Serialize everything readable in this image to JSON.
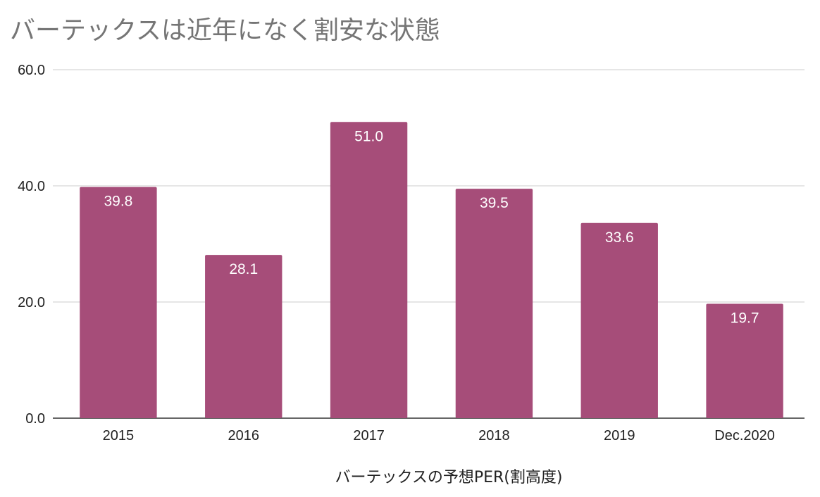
{
  "chart_data": {
    "type": "bar",
    "title": "バーテックスは近年になく割安な状態",
    "xlabel": "バーテックスの予想PER(割高度)",
    "ylabel": "",
    "categories": [
      "2015",
      "2016",
      "2017",
      "2018",
      "2019",
      "Dec.2020"
    ],
    "values": [
      39.8,
      28.1,
      51.0,
      39.5,
      33.6,
      19.7
    ],
    "data_labels": [
      "39.8",
      "28.1",
      "51.0",
      "39.5",
      "33.6",
      "19.7"
    ],
    "ylim": [
      0,
      60
    ],
    "yticks": [
      "0.0",
      "20.0",
      "40.0",
      "60.0"
    ],
    "ytick_values": [
      0,
      20,
      40,
      60
    ],
    "grid": true,
    "legend": "none",
    "bar_color": "#a64d79",
    "title_color": "#757575"
  }
}
